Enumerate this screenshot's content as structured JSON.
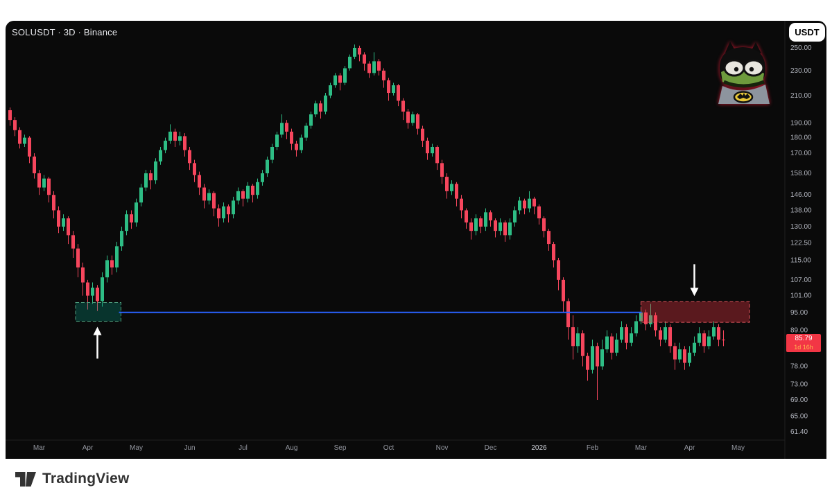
{
  "header": {
    "symbol_title": "SOLUSDT · 3D · Binance",
    "currency_button": "USDT"
  },
  "price_badge": {
    "price": "85.79",
    "countdown": "1d 16h"
  },
  "footer": {
    "brand": "TradingView"
  },
  "colors": {
    "background": "#0a0a0a",
    "up": "#2ebd85",
    "down": "#f6465d",
    "axis_text": "#b2b5be",
    "time_text": "#9598a1",
    "year_text": "#d1d4dc",
    "separator": "#202020",
    "level_line": "#2962ff",
    "badge_bg": "#f23645",
    "countdown_text": "#ffb74d",
    "zone_green_fill": "rgba(8,153,129,0.30)",
    "zone_green_stroke": "#4f9e7d",
    "zone_red_fill": "rgba(242,54,69,0.35)",
    "zone_red_stroke": "#e4565f",
    "arrow": "#ffffff"
  },
  "chart_data": {
    "type": "candlestick",
    "symbol": "SOLUSDT",
    "interval": "3D",
    "exchange": "Binance",
    "price_scale": "log",
    "last_price": 85.79,
    "y_ticks": [
      "250.00",
      "230.00",
      "210.00",
      "190.00",
      "180.00",
      "170.00",
      "158.00",
      "146.00",
      "138.00",
      "130.00",
      "122.50",
      "115.00",
      "107.00",
      "101.00",
      "95.00",
      "89.00",
      "78.00",
      "73.00",
      "69.00",
      "65.00",
      "61.40"
    ],
    "months": [
      {
        "label": "Mar",
        "ci": 6
      },
      {
        "label": "Apr",
        "ci": 16
      },
      {
        "label": "May",
        "ci": 26
      },
      {
        "label": "Jun",
        "ci": 37
      },
      {
        "label": "Jul",
        "ci": 48
      },
      {
        "label": "Aug",
        "ci": 58
      },
      {
        "label": "Sep",
        "ci": 68
      },
      {
        "label": "Oct",
        "ci": 78
      },
      {
        "label": "Nov",
        "ci": 89
      },
      {
        "label": "Dec",
        "ci": 99
      },
      {
        "label": "2026",
        "ci": 109,
        "emphasis": true
      },
      {
        "label": "Feb",
        "ci": 120
      },
      {
        "label": "Mar",
        "ci": 130
      },
      {
        "label": "Apr",
        "ci": 140
      },
      {
        "label": "May",
        "ci": 150
      }
    ],
    "candles": [
      [
        199,
        201,
        188,
        192
      ],
      [
        192,
        194,
        181,
        185
      ],
      [
        185,
        187,
        173,
        176
      ],
      [
        176,
        182,
        174,
        180
      ],
      [
        180,
        181,
        164,
        168
      ],
      [
        168,
        170,
        155,
        158
      ],
      [
        158,
        160,
        146,
        150
      ],
      [
        150,
        157,
        148,
        155
      ],
      [
        155,
        156,
        142,
        146
      ],
      [
        146,
        148,
        134,
        138
      ],
      [
        138,
        140,
        127,
        130
      ],
      [
        130,
        136,
        128,
        134
      ],
      [
        134,
        135,
        122,
        126
      ],
      [
        126,
        128,
        116,
        120
      ],
      [
        120,
        122,
        108,
        112
      ],
      [
        112,
        114,
        101,
        106
      ],
      [
        106,
        107,
        96,
        101
      ],
      [
        101,
        106,
        98,
        104
      ],
      [
        104,
        105,
        95.5,
        99
      ],
      [
        99,
        110,
        97,
        108
      ],
      [
        108,
        117,
        106,
        115
      ],
      [
        115,
        117,
        109,
        112
      ],
      [
        112,
        123,
        110,
        121
      ],
      [
        121,
        130,
        119,
        128
      ],
      [
        128,
        138,
        126,
        136
      ],
      [
        136,
        138,
        129,
        132
      ],
      [
        132,
        144,
        130,
        142
      ],
      [
        142,
        152,
        140,
        150
      ],
      [
        150,
        160,
        148,
        158
      ],
      [
        158,
        160,
        149,
        154
      ],
      [
        154,
        167,
        152,
        165
      ],
      [
        165,
        174,
        163,
        172
      ],
      [
        172,
        180,
        170,
        178
      ],
      [
        178,
        189,
        176,
        184
      ],
      [
        184,
        186,
        174,
        178
      ],
      [
        178,
        184,
        175,
        181
      ],
      [
        181,
        183,
        168,
        172
      ],
      [
        172,
        174,
        160,
        164
      ],
      [
        164,
        166,
        153,
        157
      ],
      [
        157,
        159,
        146,
        150
      ],
      [
        150,
        152,
        139,
        143
      ],
      [
        143,
        149,
        141,
        147
      ],
      [
        147,
        148,
        135,
        139
      ],
      [
        139,
        141,
        130,
        134
      ],
      [
        134,
        142,
        132,
        140
      ],
      [
        140,
        141,
        132,
        136
      ],
      [
        136,
        145,
        134,
        143
      ],
      [
        143,
        150,
        141,
        148
      ],
      [
        148,
        149,
        140,
        144
      ],
      [
        144,
        153,
        142,
        151
      ],
      [
        151,
        152,
        142,
        146
      ],
      [
        146,
        155,
        144,
        153
      ],
      [
        153,
        160,
        151,
        158
      ],
      [
        158,
        168,
        156,
        166
      ],
      [
        166,
        176,
        164,
        174
      ],
      [
        174,
        184,
        172,
        182
      ],
      [
        182,
        196,
        180,
        190
      ],
      [
        190,
        192,
        179,
        184
      ],
      [
        184,
        186,
        172,
        176
      ],
      [
        176,
        178,
        168,
        172
      ],
      [
        172,
        182,
        170,
        180
      ],
      [
        180,
        190,
        178,
        188
      ],
      [
        188,
        198,
        186,
        196
      ],
      [
        196,
        206,
        194,
        204
      ],
      [
        204,
        206,
        193,
        198
      ],
      [
        198,
        212,
        196,
        210
      ],
      [
        210,
        220,
        208,
        218
      ],
      [
        218,
        228,
        216,
        226
      ],
      [
        226,
        228,
        214,
        220
      ],
      [
        220,
        234,
        218,
        232
      ],
      [
        232,
        244,
        230,
        242
      ],
      [
        242,
        253,
        240,
        250
      ],
      [
        250,
        252,
        238,
        244
      ],
      [
        244,
        246,
        230,
        236
      ],
      [
        236,
        238,
        224,
        228
      ],
      [
        228,
        246,
        226,
        238
      ],
      [
        238,
        240,
        226,
        230
      ],
      [
        230,
        232,
        216,
        222
      ],
      [
        222,
        224,
        206,
        212
      ],
      [
        212,
        220,
        210,
        218
      ],
      [
        218,
        219,
        202,
        206
      ],
      [
        206,
        208,
        192,
        198
      ],
      [
        198,
        200,
        186,
        190
      ],
      [
        190,
        198,
        188,
        196
      ],
      [
        196,
        197,
        182,
        186
      ],
      [
        186,
        188,
        174,
        178
      ],
      [
        178,
        180,
        166,
        170
      ],
      [
        170,
        176,
        168,
        174
      ],
      [
        174,
        175,
        160,
        164
      ],
      [
        164,
        166,
        152,
        156
      ],
      [
        156,
        158,
        144,
        148
      ],
      [
        148,
        154,
        146,
        152
      ],
      [
        152,
        153,
        140,
        144
      ],
      [
        144,
        146,
        134,
        138
      ],
      [
        138,
        139,
        129,
        132
      ],
      [
        132,
        134,
        124,
        128
      ],
      [
        128,
        136,
        126,
        134
      ],
      [
        134,
        135,
        127,
        130
      ],
      [
        130,
        139,
        128,
        137
      ],
      [
        137,
        138,
        130,
        133
      ],
      [
        133,
        134,
        125,
        128
      ],
      [
        128,
        134,
        126,
        132
      ],
      [
        132,
        133,
        123,
        126
      ],
      [
        126,
        134,
        124,
        132
      ],
      [
        132,
        140,
        130,
        138
      ],
      [
        138,
        145,
        136,
        143
      ],
      [
        143,
        144,
        136,
        139
      ],
      [
        139,
        148,
        137,
        144
      ],
      [
        144,
        145,
        136,
        140
      ],
      [
        140,
        141,
        131,
        134
      ],
      [
        134,
        135,
        125,
        128
      ],
      [
        128,
        129,
        119,
        122
      ],
      [
        122,
        123,
        112,
        115
      ],
      [
        115,
        116,
        103,
        107
      ],
      [
        107,
        108,
        95,
        99
      ],
      [
        99,
        100,
        86,
        90
      ],
      [
        90,
        94,
        80,
        84
      ],
      [
        84,
        90,
        82,
        88
      ],
      [
        88,
        89,
        78,
        81
      ],
      [
        81,
        82,
        74,
        77
      ],
      [
        77,
        86,
        76,
        84
      ],
      [
        84,
        85,
        69,
        78
      ],
      [
        78,
        86,
        77,
        83
      ],
      [
        83,
        89,
        82,
        87
      ],
      [
        87,
        88,
        80,
        82
      ],
      [
        82,
        88,
        81,
        86
      ],
      [
        86,
        92,
        85,
        90
      ],
      [
        90,
        91,
        83,
        85
      ],
      [
        85,
        90,
        84,
        88
      ],
      [
        88,
        94,
        87,
        92
      ],
      [
        92,
        97,
        91,
        95
      ],
      [
        95,
        96,
        89,
        91
      ],
      [
        91,
        98,
        90,
        94
      ],
      [
        94,
        95,
        87,
        89
      ],
      [
        89,
        90,
        84,
        86
      ],
      [
        86,
        92,
        85,
        90
      ],
      [
        90,
        91,
        82,
        84
      ],
      [
        84,
        85,
        77,
        80
      ],
      [
        80,
        85,
        79,
        83
      ],
      [
        83,
        84,
        77,
        79
      ],
      [
        79,
        84,
        78,
        82
      ],
      [
        82,
        87,
        81,
        85
      ],
      [
        85,
        90,
        84,
        88
      ],
      [
        88,
        89,
        82,
        84
      ],
      [
        84,
        89,
        83,
        87
      ],
      [
        87,
        92,
        86,
        90
      ],
      [
        90,
        91,
        84,
        86
      ],
      [
        86,
        89,
        84,
        85.79
      ]
    ],
    "annotations": {
      "support_zone": {
        "shape": "dashed-box",
        "price_high": 98.5,
        "price_low": 92.0,
        "ci_start": 14,
        "ci_end": 22.5,
        "color": "green"
      },
      "resistance_zone": {
        "shape": "dashed-box",
        "price_high": 98.8,
        "price_low": 91.6,
        "ci_start": 130.5,
        "ci_end": 152,
        "color": "red"
      },
      "level_line": {
        "shape": "horizontal-line",
        "price": 95.0,
        "ci_start": 22.8,
        "ci_end": 130.5
      },
      "up_arrow": {
        "shape": "arrow-up",
        "ci": 18
      },
      "down_arrow": {
        "shape": "arrow-down",
        "ci": 141
      }
    }
  }
}
